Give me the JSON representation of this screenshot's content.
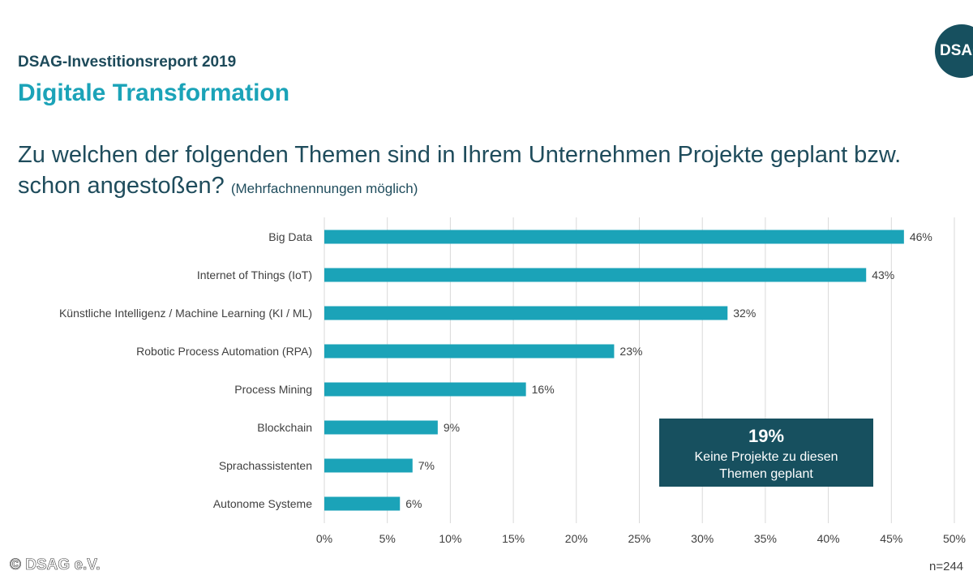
{
  "header": {
    "report_title": "DSAG-Investitionsreport 2019",
    "section_title": "Digitale Transformation",
    "logo_text": "DSAG",
    "question": "Zu welchen der folgenden Themen sind in Ihrem Unternehmen Projekte geplant bzw. schon angestoßen?",
    "question_note": "(Mehrfachnennungen möglich)"
  },
  "chart_data": {
    "type": "bar",
    "orientation": "horizontal",
    "title": "Zu welchen der folgenden Themen sind in Ihrem Unternehmen Projekte geplant bzw. schon angestoßen?",
    "categories": [
      "Big Data",
      "Internet of Things (IoT)",
      "Künstliche Intelligenz / Machine Learning (KI / ML)",
      "Robotic Process Automation (RPA)",
      "Process Mining",
      "Blockchain",
      "Sprachassistenten",
      "Autonome Systeme"
    ],
    "values": [
      46,
      43,
      32,
      23,
      16,
      9,
      7,
      6
    ],
    "value_labels": [
      "46%",
      "43%",
      "32%",
      "23%",
      "16%",
      "9%",
      "7%",
      "6%"
    ],
    "xlim": [
      0,
      50
    ],
    "x_ticks": [
      "0%",
      "5%",
      "10%",
      "15%",
      "20%",
      "25%",
      "30%",
      "35%",
      "40%",
      "45%",
      "50%"
    ],
    "grid": true,
    "bar_color": "#1ba3b8"
  },
  "callout": {
    "percent": "19%",
    "text": "Keine Projekte zu diesen Themen geplant"
  },
  "footer": {
    "copyright": "© DSAG e.V.",
    "sample_size": "n=244"
  }
}
